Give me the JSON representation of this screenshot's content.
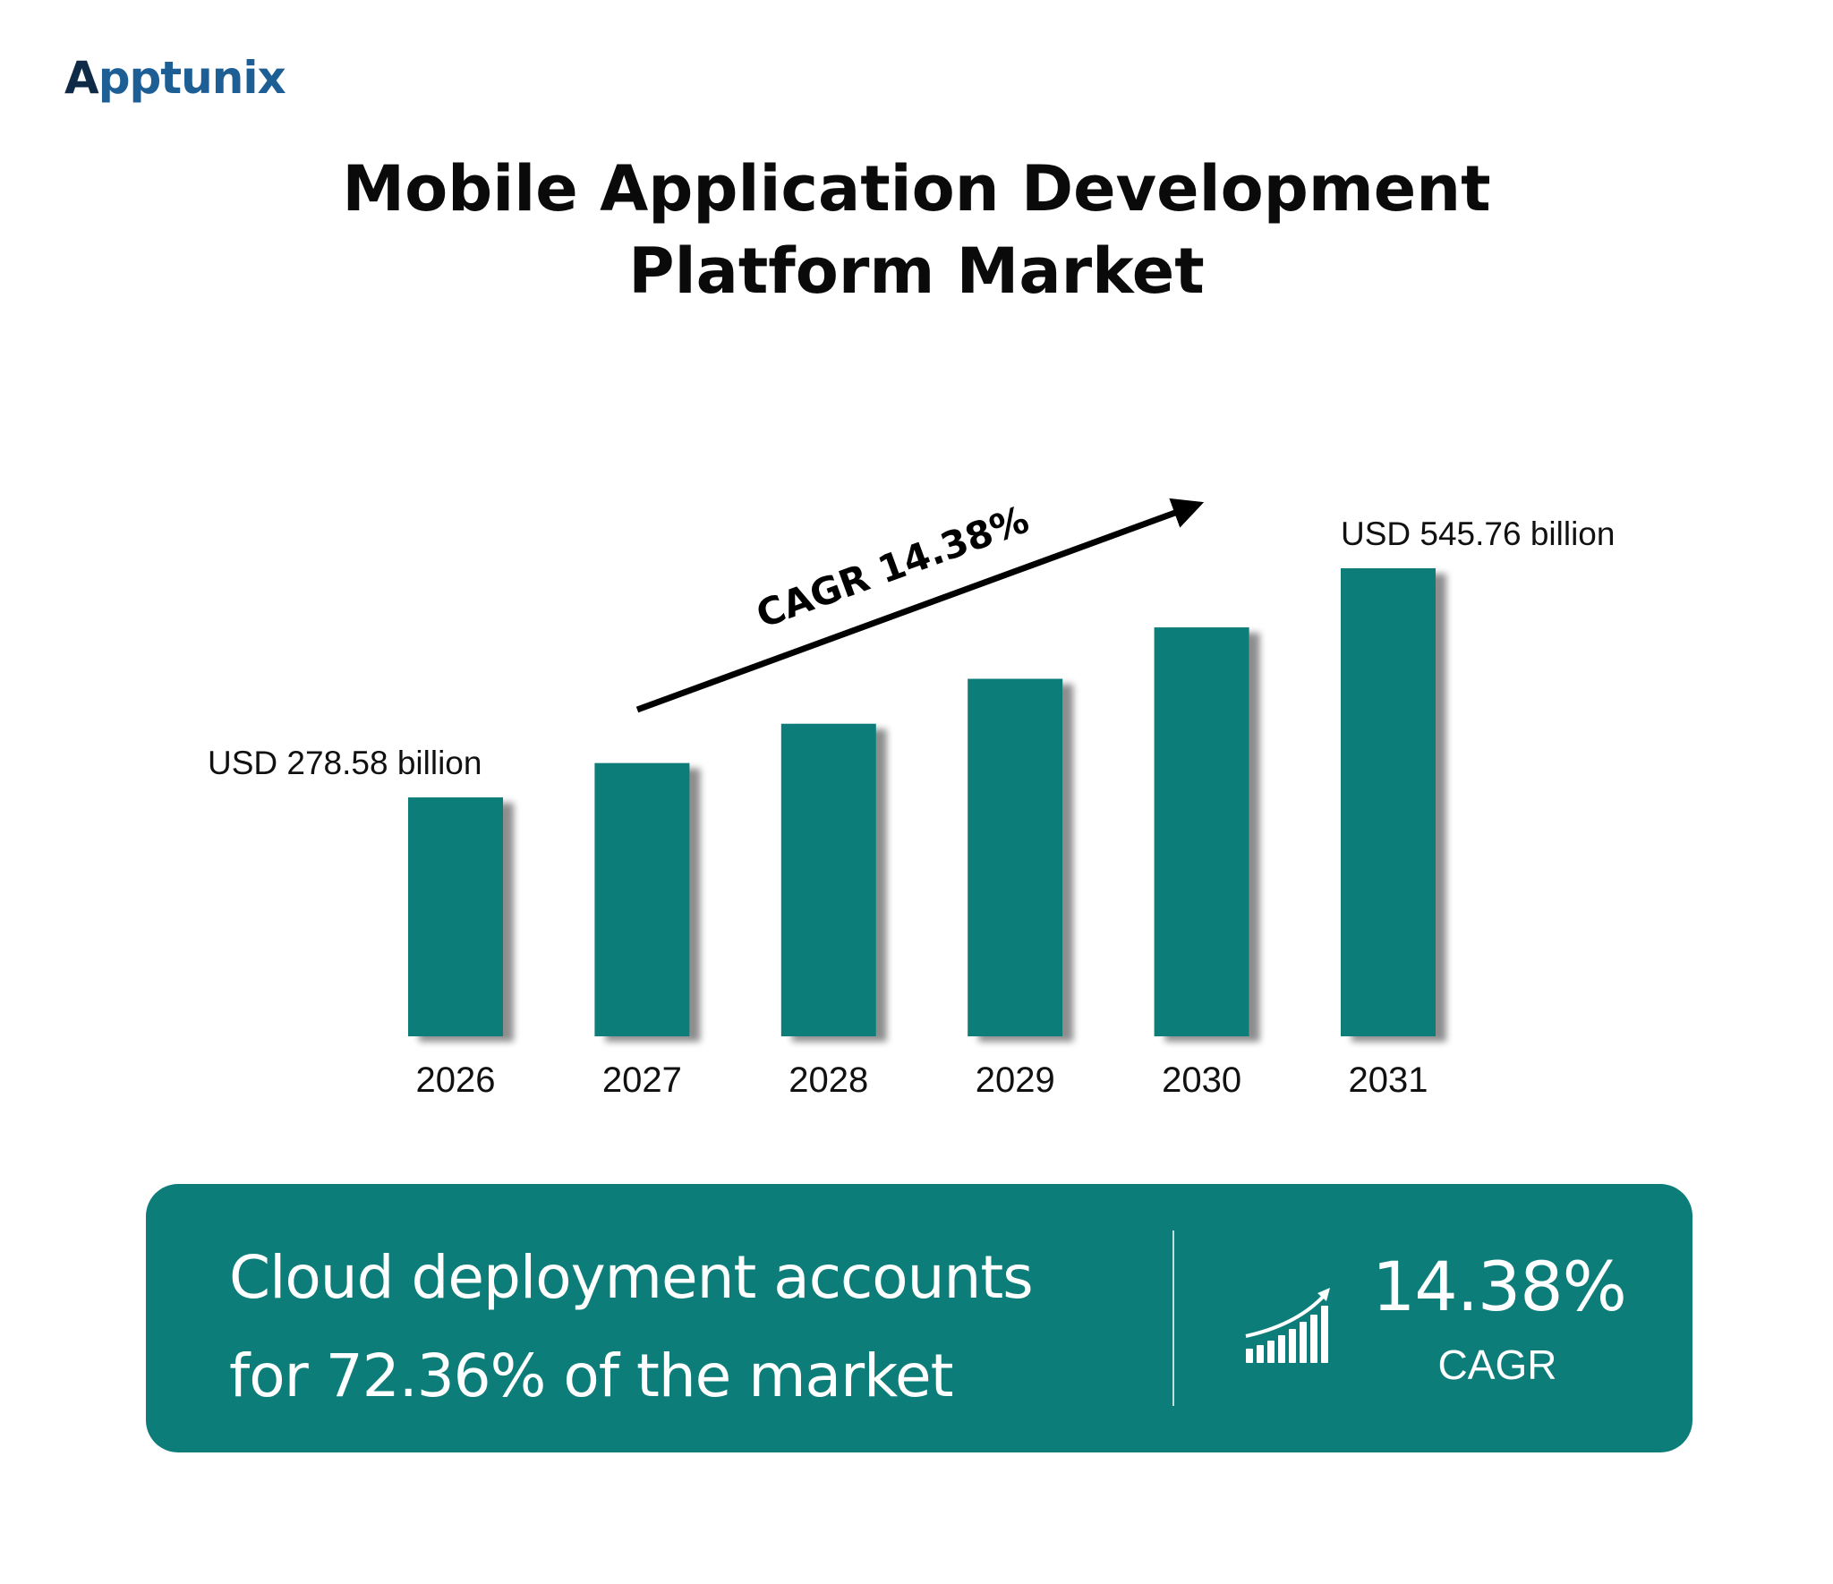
{
  "brand": {
    "logo_text_a": "A",
    "logo_text_rest": "pptunix"
  },
  "header": {
    "title_line1": "Mobile Application Development",
    "title_line2": "Platform Market"
  },
  "chart_data": {
    "type": "bar",
    "title": "Mobile Application Development Platform Market",
    "categories": [
      "2026",
      "2027",
      "2028",
      "2029",
      "2030",
      "2031"
    ],
    "values": [
      278.58,
      318.64,
      364.46,
      416.87,
      476.82,
      545.76
    ],
    "unit": "USD billion",
    "data_labels": [
      "USD 278.58 billion",
      "",
      "",
      "",
      "",
      "USD 545.76 billion"
    ],
    "annotation": "CAGR 14.38%",
    "bar_color": "#0d7d79",
    "grid": false,
    "ylim": [
      0,
      545.76
    ],
    "xlabel": "",
    "ylabel": ""
  },
  "banner": {
    "headline_line1": "Cloud deployment accounts",
    "headline_line2": "for 72.36% of the market",
    "stat_value": "14.38%",
    "stat_label": "CAGR",
    "icon": "growth-chart-icon",
    "background": "#0d7d79"
  }
}
